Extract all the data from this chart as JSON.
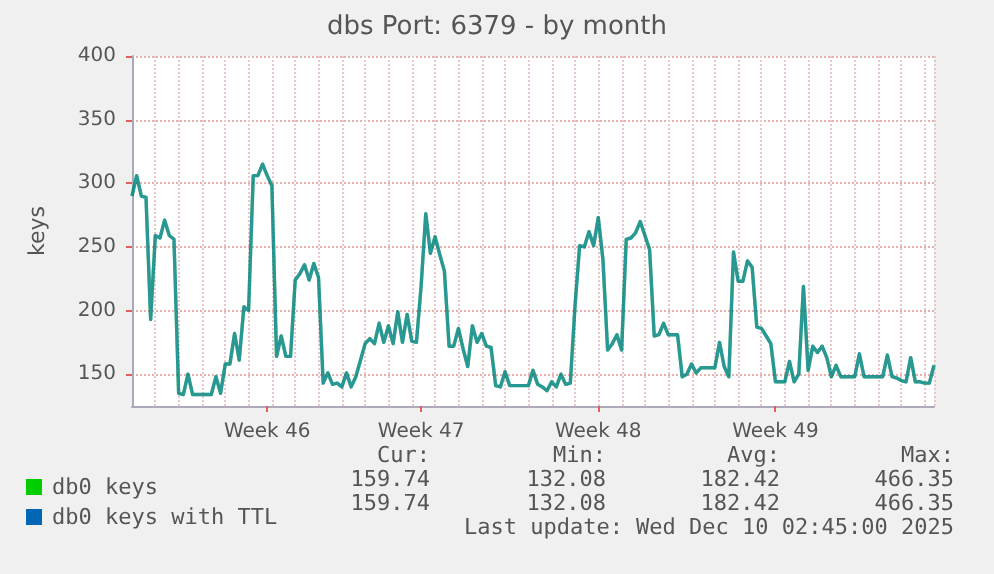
{
  "chart_data": {
    "type": "line",
    "title": "dbs Port: 6379 - by month",
    "ylabel": "keys",
    "categories": [
      null,
      null,
      null,
      null,
      null,
      null,
      null,
      null,
      null,
      null,
      null,
      null,
      null,
      null,
      null,
      null,
      null,
      null,
      null,
      null,
      null,
      null,
      null,
      null,
      null,
      null,
      null,
      null,
      null,
      "Week 46",
      null,
      null,
      null,
      null,
      null,
      null,
      null,
      null,
      null,
      null,
      null,
      null,
      null,
      null,
      null,
      null,
      null,
      null,
      null,
      null,
      null,
      null,
      null,
      null,
      null,
      null,
      null,
      null,
      null,
      null,
      null,
      null,
      "Week 47",
      null,
      null,
      null,
      null,
      null,
      null,
      null,
      null,
      null,
      null,
      null,
      null,
      null,
      null,
      null,
      null,
      null,
      null,
      null,
      null,
      null,
      null,
      null,
      null,
      null,
      null,
      null,
      null,
      null,
      null,
      null,
      null,
      null,
      null,
      null,
      null,
      null,
      "Week 48",
      null,
      null,
      null,
      null,
      null,
      null,
      null,
      null,
      null,
      null,
      null,
      null,
      null,
      null,
      null,
      null,
      null,
      null,
      null,
      null,
      null,
      null,
      null,
      null,
      null,
      null,
      null,
      null,
      null,
      null,
      null,
      null,
      null,
      null,
      null,
      null,
      null,
      "Week 49",
      null,
      null,
      null,
      null,
      null,
      null,
      null,
      null,
      null,
      null,
      null,
      null,
      null,
      null,
      null,
      null,
      null,
      null,
      null,
      null,
      null,
      null,
      null,
      null,
      null,
      null,
      null,
      null,
      null,
      null,
      null,
      null,
      null,
      null
    ],
    "series": [
      {
        "name": "db0 keys",
        "color": "#00cc00",
        "values": [
          290,
          306,
          290,
          289,
          193,
          259,
          257,
          271,
          259,
          256,
          135,
          134,
          150,
          134,
          134,
          134,
          134,
          134,
          148,
          135,
          158,
          158,
          182,
          161,
          203,
          200,
          306,
          306,
          315,
          306,
          298,
          164,
          180,
          164,
          164,
          224,
          229,
          236,
          224,
          237,
          226,
          143,
          151,
          142,
          143,
          140,
          151,
          140,
          148,
          161,
          174,
          178,
          174,
          190,
          175,
          188,
          174,
          199,
          175,
          197,
          176,
          175,
          219,
          276,
          245,
          258,
          244,
          231,
          172,
          172,
          186,
          170,
          156,
          188,
          175,
          182,
          172,
          171,
          141,
          140,
          152,
          141,
          141,
          141,
          141,
          141,
          153,
          142,
          140,
          137,
          144,
          140,
          150,
          142,
          143,
          203,
          251,
          250,
          262,
          251,
          273,
          240,
          169,
          174,
          181,
          169,
          256,
          257,
          261,
          270,
          259,
          248,
          180,
          181,
          190,
          181,
          181,
          181,
          148,
          150,
          158,
          151,
          155,
          155,
          155,
          155,
          175,
          156,
          148,
          246,
          223,
          223,
          239,
          234,
          187,
          186,
          180,
          174,
          144,
          144,
          144,
          160,
          144,
          150,
          219,
          153,
          172,
          167,
          172,
          163,
          148,
          157,
          148,
          148,
          148,
          148,
          166,
          148,
          148,
          148,
          148,
          148,
          165,
          148,
          147,
          145,
          144,
          163,
          144,
          144,
          143,
          143,
          157
        ]
      },
      {
        "name": "db0 keys with TTL",
        "color": "#0066b3",
        "values": [
          290,
          306,
          290,
          289,
          193,
          259,
          257,
          271,
          259,
          256,
          135,
          134,
          150,
          134,
          134,
          134,
          134,
          134,
          148,
          135,
          158,
          158,
          182,
          161,
          203,
          200,
          306,
          306,
          315,
          306,
          298,
          164,
          180,
          164,
          164,
          224,
          229,
          236,
          224,
          237,
          226,
          143,
          151,
          142,
          143,
          140,
          151,
          140,
          148,
          161,
          174,
          178,
          174,
          190,
          175,
          188,
          174,
          199,
          175,
          197,
          176,
          175,
          219,
          276,
          245,
          258,
          244,
          231,
          172,
          172,
          186,
          170,
          156,
          188,
          175,
          182,
          172,
          171,
          141,
          140,
          152,
          141,
          141,
          141,
          141,
          141,
          153,
          142,
          140,
          137,
          144,
          140,
          150,
          142,
          143,
          203,
          251,
          250,
          262,
          251,
          273,
          240,
          169,
          174,
          181,
          169,
          256,
          257,
          261,
          270,
          259,
          248,
          180,
          181,
          190,
          181,
          181,
          181,
          148,
          150,
          158,
          151,
          155,
          155,
          155,
          155,
          175,
          156,
          148,
          246,
          223,
          223,
          239,
          234,
          187,
          186,
          180,
          174,
          144,
          144,
          144,
          160,
          144,
          150,
          219,
          153,
          172,
          167,
          172,
          163,
          148,
          157,
          148,
          148,
          148,
          148,
          166,
          148,
          148,
          148,
          148,
          148,
          165,
          148,
          147,
          145,
          144,
          163,
          144,
          144,
          143,
          143,
          157
        ]
      }
    ],
    "ylim": [
      125,
      400
    ],
    "yticks": [
      150,
      200,
      250,
      300,
      350,
      400
    ],
    "grid": true,
    "legend": "bottom left",
    "marker": "none",
    "line_style": "solid",
    "annotations": [
      "Cur:",
      "Min:",
      "Avg:",
      "Max:",
      "159.74",
      "132.08",
      "182.42",
      "466.35",
      "159.74",
      "132.08",
      "182.42",
      "466.35",
      "Last update: Wed Dec 10 02:45:00 2025"
    ]
  }
}
